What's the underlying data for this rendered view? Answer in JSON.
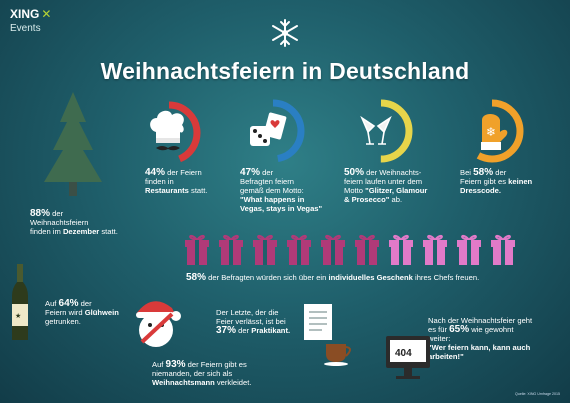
{
  "brand": {
    "logo_text": "XING",
    "logo_mark": "x-mark",
    "subtitle": "Events"
  },
  "title": "Weihnachtsfeiern in Deutschland",
  "colors": {
    "red": "#d93a3a",
    "blue": "#2a7fc3",
    "yellow": "#e7d54a",
    "orange": "#f0a12a",
    "pink": "#e17ac8",
    "gift": "#b03a78",
    "teal": "#1f5f6b"
  },
  "facts": {
    "restaurants": {
      "percent": "44%",
      "pre": "der Feiern",
      "line2": "finden in",
      "strong": "Restaurants",
      "post": "statt.",
      "ring": 0.44
    },
    "vegas": {
      "percent": "47%",
      "pre": "der",
      "line2": "Befragten feiern",
      "line3": "gemäß dem Motto:",
      "strong1": "\"What happens in",
      "strong2": "Vegas, stays in Vegas\"",
      "ring": 0.47
    },
    "glitzer": {
      "percent": "50%",
      "pre": "der Weihnachts-",
      "line2": "feiern laufen unter dem",
      "line3": "Motto",
      "strong1": "\"Glitzer, Glamour",
      "strong2": "& Prosecco\"",
      "post": "ab.",
      "ring": 0.5
    },
    "dresscode": {
      "pre": "Bei",
      "percent": "58%",
      "post": "der",
      "line2": "Feiern gibt es",
      "strong1": "keinen",
      "strong2": "Dresscode.",
      "ring": 0.58
    },
    "december": {
      "percent": "88%",
      "pre": "der",
      "line2": "Weihnachtsfeiern",
      "line3": "finden im",
      "strong": "Dezember",
      "post": "statt."
    },
    "gift": {
      "percent": "58%",
      "pre": "der Befragten würden sich über ein",
      "strong": "individuelles Geschenk",
      "post": "ihres Chefs freuen.",
      "gift_count": 10,
      "highlight_count": 6
    },
    "gluehwein": {
      "pre": "Auf",
      "percent": "64%",
      "post": "der",
      "line2": "Feiern wird",
      "strong": "Glühwein",
      "line3": "getrunken."
    },
    "santa": {
      "pre": "Auf",
      "percent": "93%",
      "post": "der Feiern gibt es",
      "line2": "niemanden, der sich als",
      "strong": "Weihnachtsmann",
      "line3": "verkleidet."
    },
    "praktikant": {
      "line1": "Der Letzte, der die",
      "line2": "Feier verlässt, ist bei",
      "percent": "37%",
      "pre": "der",
      "strong": "Praktikant."
    },
    "motto": {
      "line1": "Nach der Weihnachtsfeier geht",
      "line2pre": "es für",
      "percent": "65%",
      "line2post": "wie gewohnt",
      "line3": "weiter:",
      "strong1": "\"Wer feiern kann, kann auch",
      "strong2": "arbeiten!\"",
      "screen_text": "404"
    }
  },
  "footer": "Quelle: XING Umfrage 2015"
}
